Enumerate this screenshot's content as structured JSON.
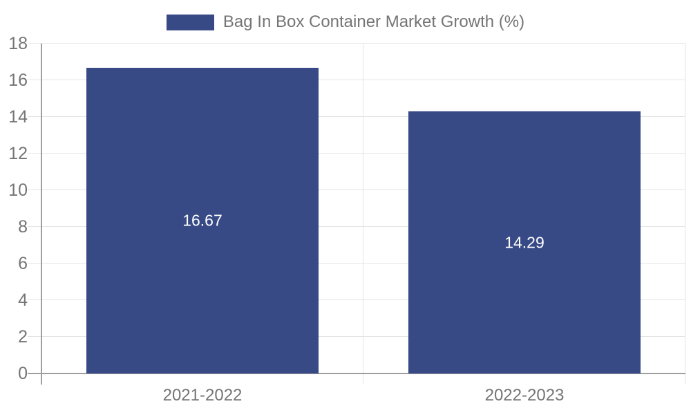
{
  "legend": {
    "label": "Bag In Box Container Market Growth (%)"
  },
  "colors": {
    "bar": "#384A85",
    "grid": "#E4E4E4",
    "axis": "#9E9E9E",
    "tick_text": "#757575",
    "legend_text": "#757575",
    "value_label_text": "#FFFFFF",
    "background": "#FFFFFF"
  },
  "chart_data": {
    "type": "bar",
    "categories": [
      "2021-2022",
      "2022-2023"
    ],
    "values": [
      16.67,
      14.29
    ],
    "value_labels": [
      "16.67",
      "14.29"
    ],
    "series_name": "Bag In Box Container Market Growth (%)",
    "title": "",
    "xlabel": "",
    "ylabel": "",
    "ylim": [
      0,
      18
    ],
    "yticks": [
      0,
      2,
      4,
      6,
      8,
      10,
      12,
      14,
      16,
      18
    ],
    "grid": true,
    "legend_position": "top-center",
    "bar_label_position": "center"
  }
}
